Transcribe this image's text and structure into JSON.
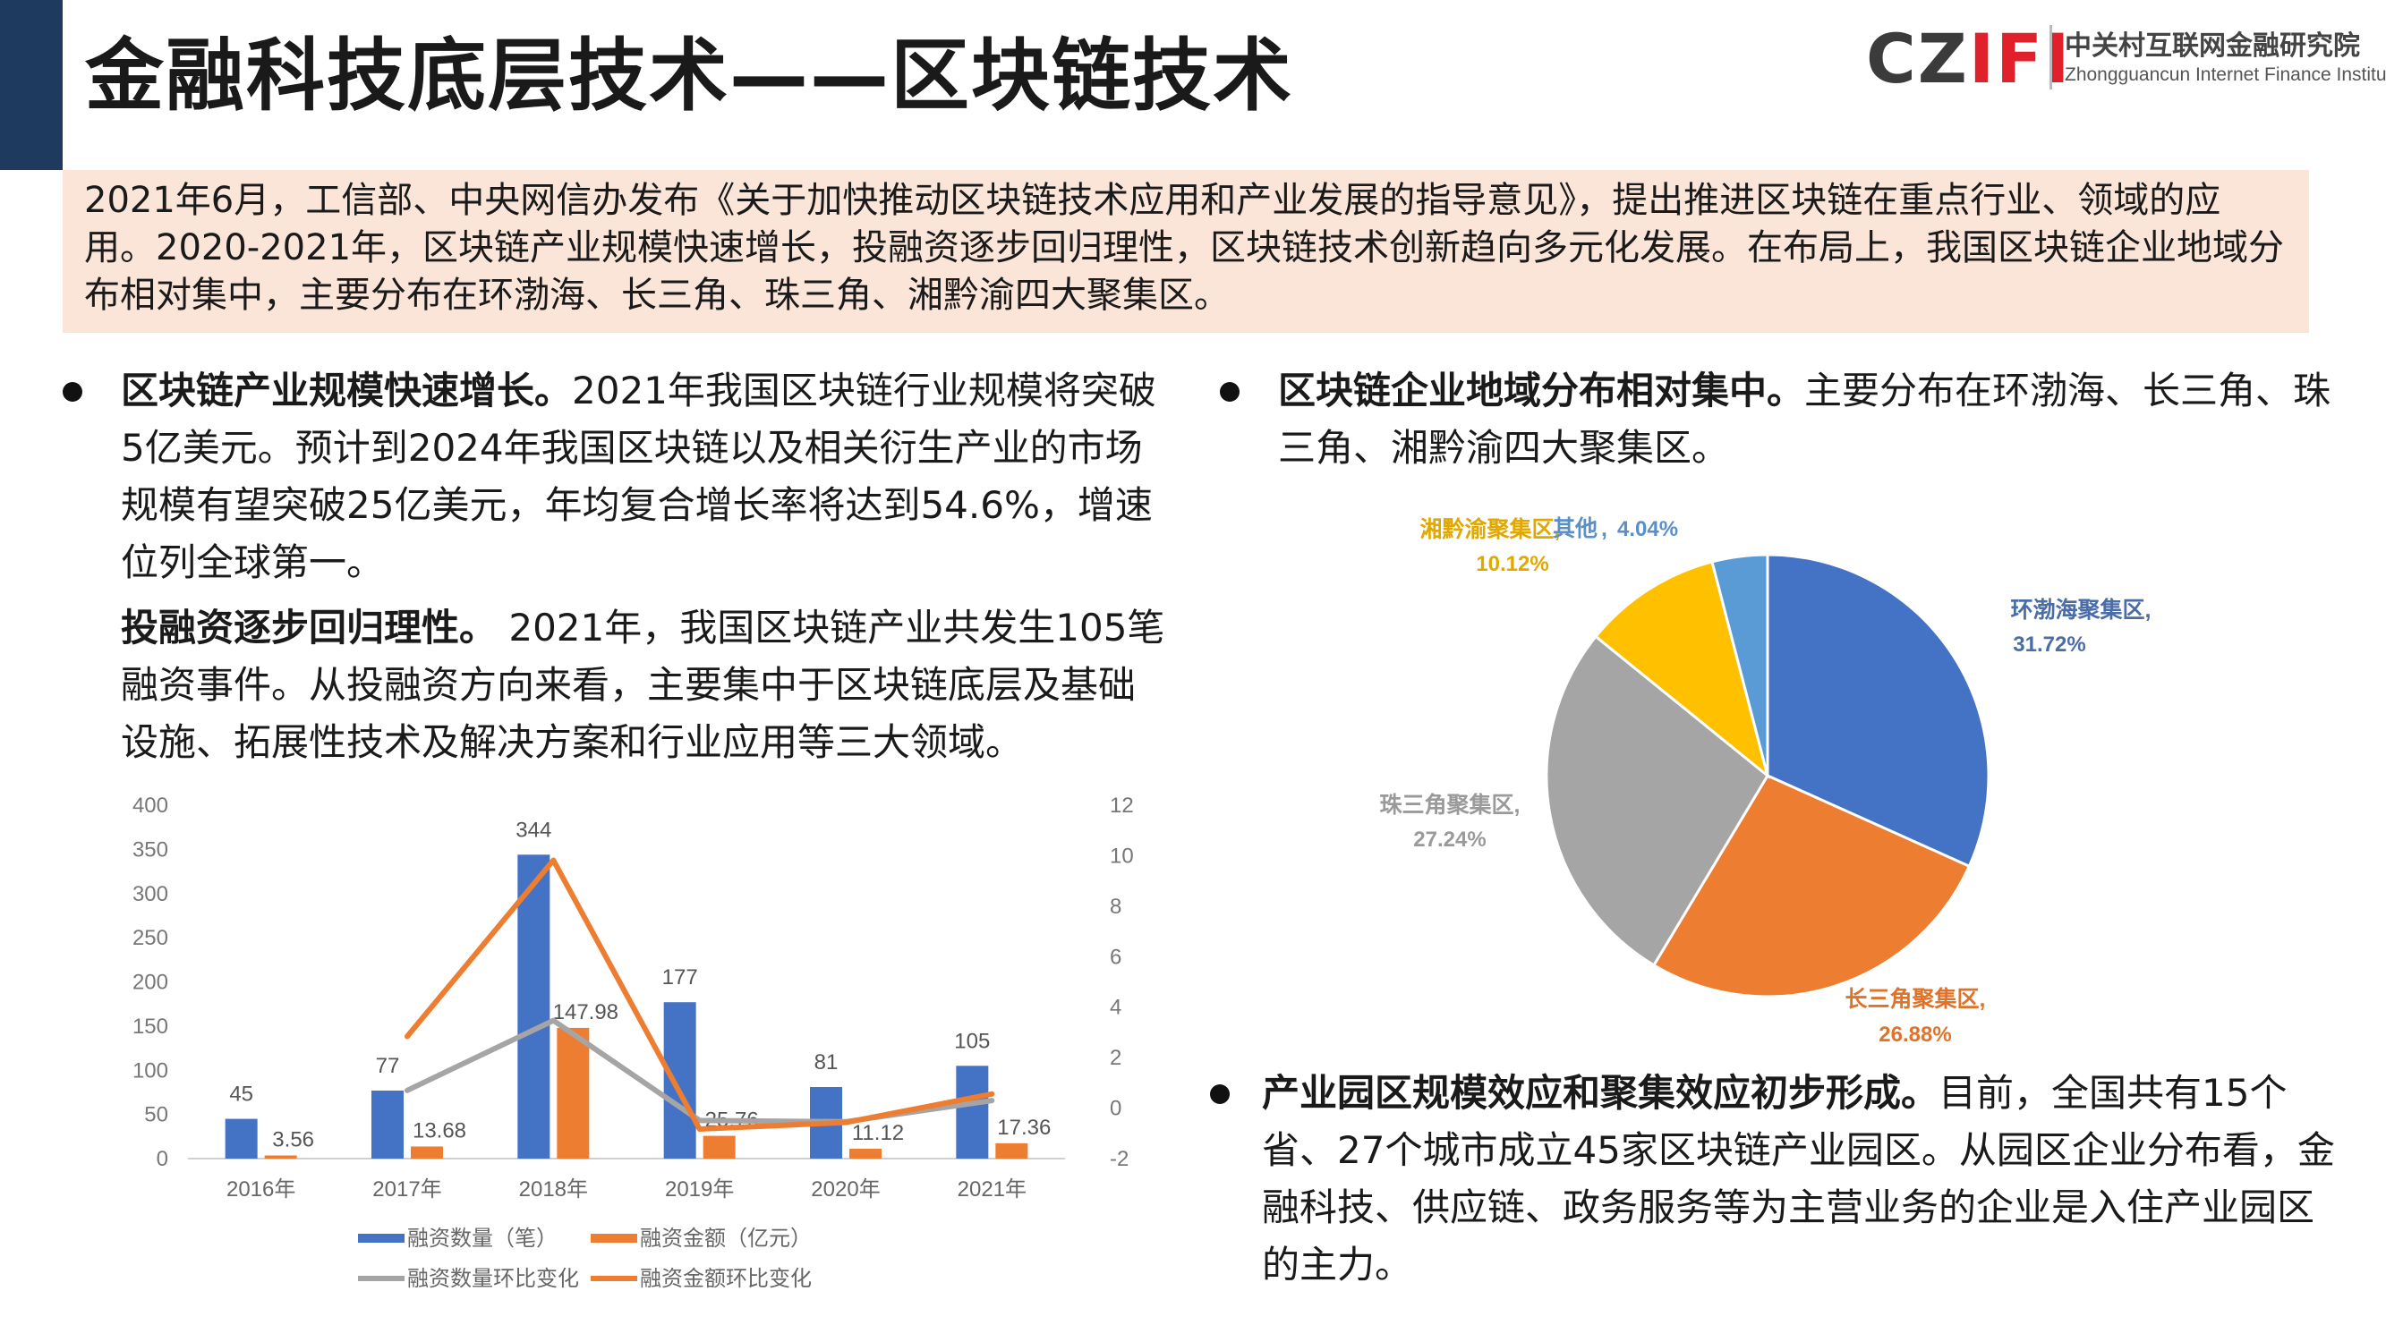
{
  "header": {
    "title": "金融科技底层技术——区块链技术",
    "logo_mark_a": "CZ",
    "logo_mark_b": "IFI",
    "logo_cn": "中关村互联网金融研究院",
    "logo_en": "Zhongguancun Internet Finance Institute"
  },
  "intro": "2021年6月，工信部、中央网信办发布《关于加快推动区块链技术应用和产业发展的指导意见》，提出推进区块链在重点行业、领域的应用。2020-2021年，区块链产业规模快速增长，投融资逐步回归理性，区块链技术创新趋向多元化发展。在布局上，我国区块链企业地域分布相对集中，主要分布在环渤海、长三角、珠三角、湘黔渝四大聚集区。",
  "bullets": [
    {
      "head": "区块链产业规模快速增长。",
      "body": "2021年我国区块链行业规模将突破5亿美元。预计到2024年我国区块链以及相关衍生产业的市场规模有望突破25亿美元，年均复合增长率将达到54.6%，增速位列全球第一。"
    },
    {
      "head": "投融资逐步回归理性。",
      "body": " 2021年，我国区块链产业共发生105笔融资事件。从投融资方向来看，主要集中于区块链底层及基础设施、拓展性技术及解决方案和行业应用等三大领域。"
    },
    {
      "head": "区块链企业地域分布相对集中。",
      "body": "主要分布在环渤海、长三角、珠三角、湘黔渝四大聚集区。"
    },
    {
      "head": "产业园区规模效应和聚集效应初步形成。",
      "body": "目前，全国共有15个省、27个城市成立45家区块链产业园区。从园区企业分布看，金融科技、供应链、政务服务等为主营业务的企业是入住产业园区的主力。"
    }
  ],
  "colors": {
    "blue": "#4472c4",
    "orange": "#ed7d31",
    "gray": "#a5a5a5",
    "gold": "#ffc000",
    "lightblue": "#5b9bd5"
  },
  "chart_data": [
    {
      "type": "bar",
      "categories": [
        "2016年",
        "2017年",
        "2018年",
        "2019年",
        "2020年",
        "2021年"
      ],
      "series": [
        {
          "name": "融资数量（笔）",
          "kind": "bar",
          "axis": "left",
          "values": [
            45,
            77,
            344,
            177,
            81,
            105
          ],
          "labels": [
            "45",
            "77",
            "344",
            "177",
            "81",
            "105"
          ]
        },
        {
          "name": "融资金额（亿元）",
          "kind": "bar",
          "axis": "left",
          "values": [
            3.56,
            13.68,
            147.98,
            25.76,
            11.12,
            17.36
          ],
          "labels": [
            "3.56",
            "13.68",
            "147.98",
            "25.76",
            "11.12",
            "17.36"
          ]
        },
        {
          "name": "融资数量环比变化",
          "kind": "line",
          "axis": "right",
          "values": [
            null,
            0.7,
            3.47,
            -0.49,
            -0.54,
            0.3
          ]
        },
        {
          "name": "融资金额环比变化",
          "kind": "line",
          "axis": "right",
          "values": [
            null,
            2.84,
            9.82,
            -0.83,
            -0.57,
            0.56
          ]
        }
      ],
      "ylim": [
        0,
        400
      ],
      "yticks": [
        "0",
        "50",
        "100",
        "150",
        "200",
        "250",
        "300",
        "350",
        "400"
      ],
      "y2lim": [
        -2,
        12
      ],
      "y2ticks": [
        "-2",
        "0",
        "2",
        "4",
        "6",
        "8",
        "10",
        "12"
      ],
      "legend": "bottom"
    },
    {
      "type": "pie",
      "slices": [
        {
          "name": "环渤海聚集区",
          "value": 31.72,
          "label": "31.72%"
        },
        {
          "name": "长三角聚集区",
          "value": 26.88,
          "label": "26.88%"
        },
        {
          "name": "珠三角聚集区",
          "value": 27.24,
          "label": "27.24%"
        },
        {
          "name": "湘黔渝聚集区",
          "value": 10.12,
          "label": "10.12%"
        },
        {
          "name": "其他",
          "value": 4.04,
          "label": "4.04%"
        }
      ]
    }
  ]
}
